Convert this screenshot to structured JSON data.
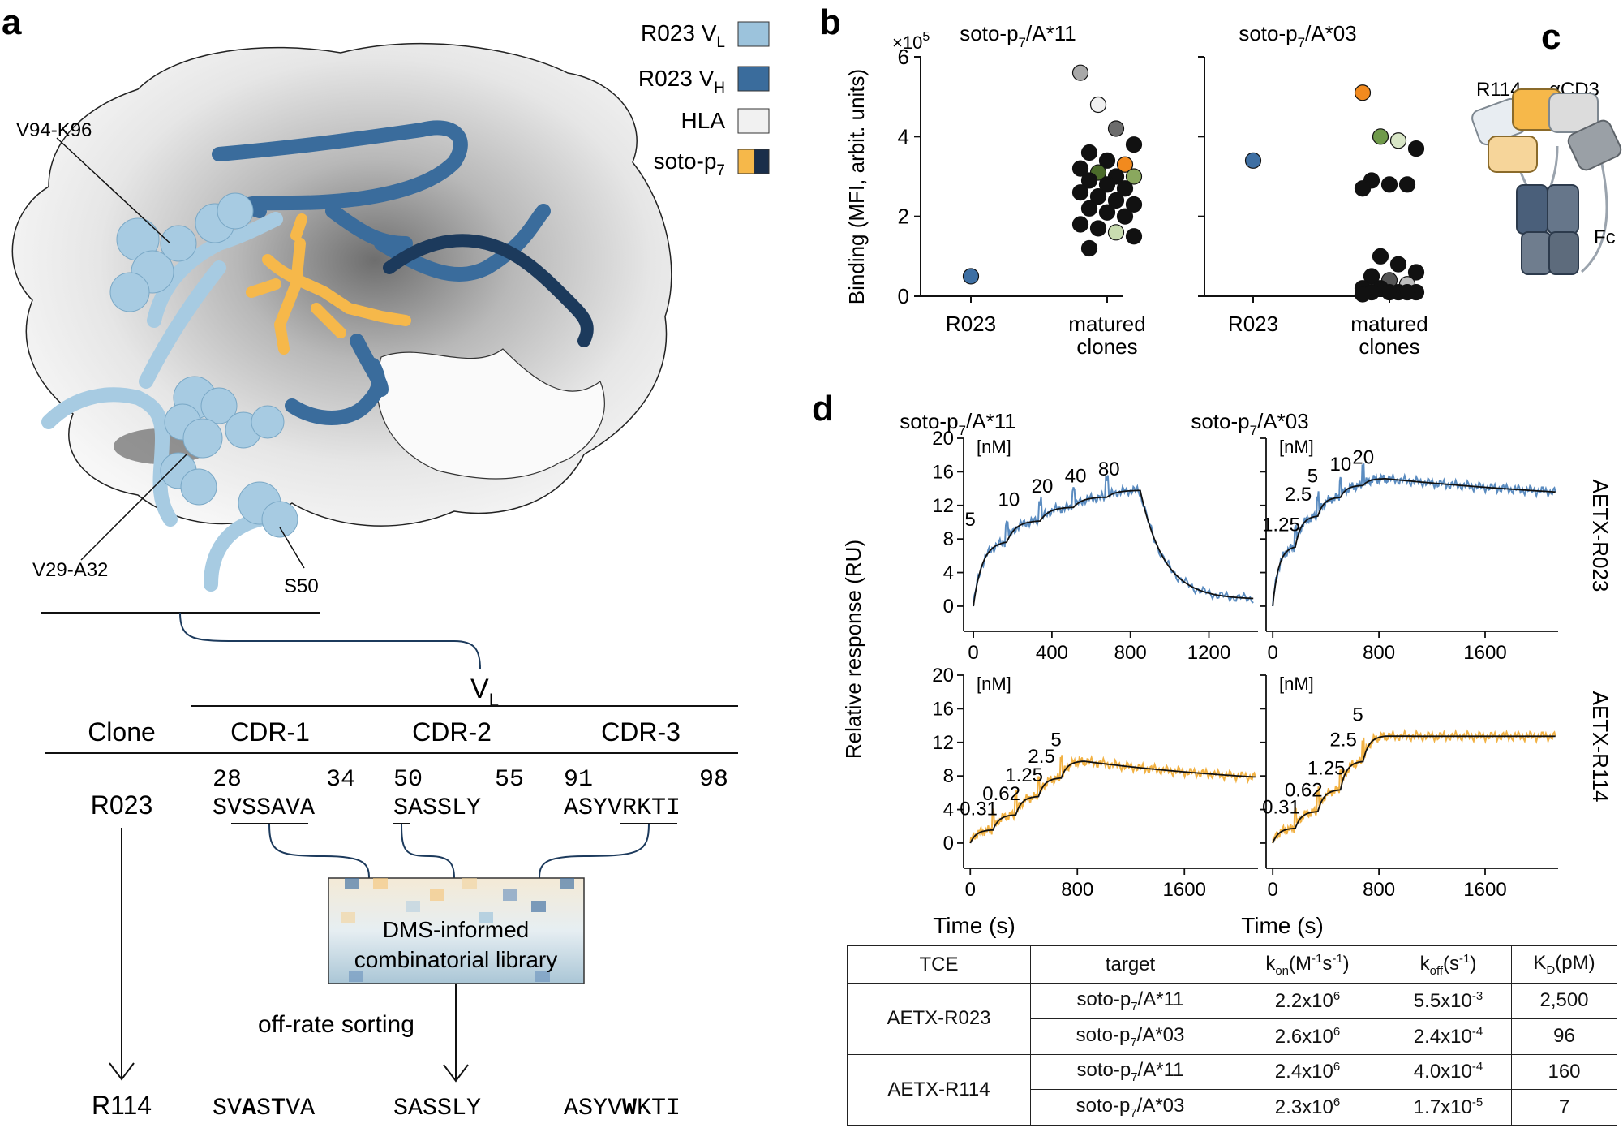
{
  "panel_a": {
    "letter": "a",
    "legend": [
      {
        "label": "R023 V",
        "sub": "L",
        "color": "#9cc3dc"
      },
      {
        "label": "R023 V",
        "sub": "H",
        "color": "#3a6c9c"
      },
      {
        "label": "HLA",
        "sub": "",
        "color": "#f1f1f1"
      },
      {
        "label": "soto-p",
        "sub": "7",
        "color": "#f6b84a",
        "color2": "#1a2e4a"
      }
    ],
    "annotations": [
      "V94-K96",
      "V29-A32",
      "S50"
    ],
    "vl_label": "V",
    "vl_sub": "L",
    "headers": {
      "clone": "Clone",
      "cdr1": "CDR-1",
      "cdr2": "CDR-2",
      "cdr3": "CDR-3"
    },
    "positions": {
      "p28": "28",
      "p34": "34",
      "p50": "50",
      "p55": "55",
      "p91": "91",
      "p98": "98"
    },
    "r023": {
      "clone": "R023",
      "cdr1": "SVSSAVA",
      "cdr2": "SASSLY",
      "cdr3": "ASYVRKTI"
    },
    "r114": {
      "clone": "R114",
      "cdr1": [
        "SV",
        "A",
        "S",
        "T",
        "VA"
      ],
      "cdr2": "SASSLY",
      "cdr3": [
        "ASYV",
        "W",
        "KTI"
      ]
    },
    "library": {
      "line1": "DMS-informed",
      "line2": "combinatorial library"
    },
    "sorting": "off-rate sorting"
  },
  "panel_b": {
    "letter": "b",
    "ylabel": "Binding (MFI, arbit. units)",
    "exponent_base": "×10",
    "exponent_pow": "5",
    "titles": [
      {
        "main": "soto-p",
        "sub": "7",
        "rest": "/A*11"
      },
      {
        "main": "soto-p",
        "sub": "7",
        "rest": "/A*03"
      }
    ],
    "xcats": {
      "r023": "R023",
      "mat1": "matured",
      "mat2": "clones"
    }
  },
  "panel_c": {
    "letter": "c",
    "r114": "R114",
    "acd3": "αCD3",
    "fc": "Fc"
  },
  "panel_d": {
    "letter": "d",
    "ylabel": "Relative response (RU)",
    "xlabel": "Time (s)",
    "unit": "[nM]",
    "titles": [
      {
        "main": "soto-p",
        "sub": "7",
        "rest": "/A*11"
      },
      {
        "main": "soto-p",
        "sub": "7",
        "rest": "/A*03"
      }
    ],
    "row_labels": [
      "AETX-R023",
      "AETX-R114"
    ],
    "conc_sets": [
      [
        "5",
        "10",
        "20",
        "40",
        "80"
      ],
      [
        "1.25",
        "2.5",
        "5",
        "10",
        "20"
      ],
      [
        "0.31",
        "0.62",
        "1.25",
        "2.5",
        "5"
      ],
      [
        "0.31",
        "0.62",
        "1.25",
        "2.5",
        "5"
      ]
    ]
  },
  "chart_data": [
    {
      "type": "scatter",
      "title": "soto-p7/A*11",
      "ylabel": "Binding (MFI, arbit. units)",
      "ylim": [
        0,
        6
      ],
      "yticks": [
        0,
        2,
        4,
        6
      ],
      "categories": [
        "R023",
        "matured clones"
      ],
      "series": [
        {
          "category": "R023",
          "values": [
            0.5
          ],
          "colors": [
            "#3e6fa3"
          ]
        },
        {
          "category": "matured clones",
          "values": [
            5.6,
            4.8,
            4.2,
            3.8,
            3.6,
            3.4,
            3.3,
            3.2,
            3.1,
            3.0,
            3.0,
            2.9,
            2.8,
            2.7,
            2.6,
            2.5,
            2.4,
            2.3,
            2.2,
            2.1,
            2.0,
            1.8,
            1.7,
            1.6,
            1.5,
            1.2
          ],
          "colors": [
            "#a8a8a8",
            "#f0f0f0",
            "#6c6c6c",
            "#111",
            "#111",
            "#111",
            "#f28a1e",
            "#111",
            "#4b6b2a",
            "#111",
            "#8aa85e",
            "#111",
            "#111",
            "#111",
            "#111",
            "#111",
            "#111",
            "#111",
            "#111",
            "#111",
            "#111",
            "#111",
            "#111",
            "#c9dcb0",
            "#111",
            "#111"
          ]
        }
      ]
    },
    {
      "type": "scatter",
      "title": "soto-p7/A*03",
      "ylim": [
        0,
        6
      ],
      "yticks": [
        0,
        2,
        4,
        6
      ],
      "categories": [
        "R023",
        "matured clones"
      ],
      "series": [
        {
          "category": "R023",
          "values": [
            3.4
          ],
          "colors": [
            "#3e6fa3"
          ]
        },
        {
          "category": "matured clones",
          "values": [
            5.1,
            4.0,
            3.9,
            3.7,
            2.9,
            2.8,
            2.8,
            2.7,
            1.0,
            0.8,
            0.6,
            0.5,
            0.4,
            0.3,
            0.2,
            0.2,
            0.1,
            0.1,
            0.1,
            0.1,
            0.1,
            0.05
          ],
          "colors": [
            "#f28a1e",
            "#6f9a4a",
            "#d8e6c6",
            "#111",
            "#111",
            "#111",
            "#111",
            "#111",
            "#111",
            "#111",
            "#111",
            "#111",
            "#555",
            "#bdbdbd",
            "#111",
            "#111",
            "#111",
            "#111",
            "#111",
            "#111",
            "#111",
            "#111"
          ]
        }
      ]
    },
    {
      "type": "line",
      "title": "soto-p7/A*11 AETX-R023",
      "xlabel": "",
      "ylabel": "Relative response (RU)",
      "xlim": [
        -50,
        1450
      ],
      "ylim": [
        -3,
        20
      ],
      "xticks": [
        0,
        400,
        800,
        1200
      ],
      "yticks": [
        0,
        4,
        8,
        12,
        16,
        20
      ],
      "concentrations_nM": [
        5,
        10,
        20,
        40,
        80
      ],
      "injection_starts_s": [
        0,
        170,
        340,
        510,
        680
      ],
      "dissociation_start_s": 850,
      "plateaus_RU": [
        7.8,
        10.2,
        11.8,
        13.0,
        13.8
      ],
      "final_RU": 0.8,
      "series_colors": {
        "data": "#5b8cc0",
        "fit": "#111"
      }
    },
    {
      "type": "line",
      "title": "soto-p7/A*03 AETX-R023",
      "xlim": [
        -50,
        2150
      ],
      "ylim": [
        -3,
        20
      ],
      "xticks": [
        0,
        800,
        1600
      ],
      "yticks": [
        0,
        4,
        8,
        12,
        16,
        20
      ],
      "concentrations_nM": [
        1.25,
        2.5,
        5,
        10,
        20
      ],
      "injection_starts_s": [
        0,
        170,
        340,
        510,
        680
      ],
      "dissociation_start_s": 850,
      "plateaus_RU": [
        7.2,
        10.8,
        13.0,
        14.4,
        15.2
      ],
      "final_RU": 11.2,
      "series_colors": {
        "data": "#5b8cc0",
        "fit": "#111"
      }
    },
    {
      "type": "line",
      "title": "soto-p7/A*11 AETX-R114",
      "xlabel": "Time (s)",
      "xlim": [
        -50,
        2150
      ],
      "ylim": [
        -3,
        20
      ],
      "xticks": [
        0,
        800,
        1600
      ],
      "yticks": [
        0,
        4,
        8,
        12,
        16,
        20
      ],
      "concentrations_nM": [
        0.31,
        0.62,
        1.25,
        2.5,
        5
      ],
      "injection_starts_s": [
        0,
        170,
        340,
        510,
        680
      ],
      "dissociation_start_s": 850,
      "plateaus_RU": [
        1.6,
        3.4,
        5.6,
        7.8,
        9.8
      ],
      "final_RU": 6.2,
      "series_colors": {
        "data": "#f2b244",
        "fit": "#111"
      }
    },
    {
      "type": "line",
      "title": "soto-p7/A*03 AETX-R114",
      "xlabel": "Time (s)",
      "xlim": [
        -50,
        2150
      ],
      "ylim": [
        -3,
        20
      ],
      "xticks": [
        0,
        800,
        1600
      ],
      "yticks": [
        0,
        4,
        8,
        12,
        16,
        20
      ],
      "concentrations_nM": [
        0.31,
        0.62,
        1.25,
        2.5,
        5
      ],
      "injection_starts_s": [
        0,
        170,
        340,
        510,
        680
      ],
      "dissociation_start_s": 850,
      "plateaus_RU": [
        1.8,
        3.8,
        6.4,
        9.8,
        12.8
      ],
      "final_RU": 12.6,
      "series_colors": {
        "data": "#f2b244",
        "fit": "#111"
      }
    },
    {
      "type": "table",
      "columns": [
        {
          "main": "TCE"
        },
        {
          "main": "target"
        },
        {
          "main": "k",
          "sub": "on",
          "rest1": "(M",
          "sup1": "-1",
          "rest2": "s",
          "sup2": "-1",
          "rest3": ")"
        },
        {
          "main": "k",
          "sub": "off",
          "rest1": "(s",
          "sup1": "-1",
          "rest2": ")"
        },
        {
          "main": "K",
          "sub": "D",
          "rest1": "(pM)"
        }
      ],
      "groups": [
        {
          "tce": "AETX-R023",
          "rows": [
            {
              "target": {
                "main": "soto-p",
                "sub": "7",
                "rest": "/A*11"
              },
              "kon": {
                "base": "2.2x10",
                "exp": "6"
              },
              "koff": {
                "base": "5.5x10",
                "exp": "-3"
              },
              "kd": "2,500"
            },
            {
              "target": {
                "main": "soto-p",
                "sub": "7",
                "rest": "/A*03"
              },
              "kon": {
                "base": "2.6x10",
                "exp": "6"
              },
              "koff": {
                "base": "2.4x10",
                "exp": "-4"
              },
              "kd": "96"
            }
          ]
        },
        {
          "tce": "AETX-R114",
          "rows": [
            {
              "target": {
                "main": "soto-p",
                "sub": "7",
                "rest": "/A*11"
              },
              "kon": {
                "base": "2.4x10",
                "exp": "6"
              },
              "koff": {
                "base": "4.0x10",
                "exp": "-4"
              },
              "kd": "160"
            },
            {
              "target": {
                "main": "soto-p",
                "sub": "7",
                "rest": "/A*03"
              },
              "kon": {
                "base": "2.3x10",
                "exp": "6"
              },
              "koff": {
                "base": "1.7x10",
                "exp": "-5"
              },
              "kd": "7"
            }
          ]
        }
      ]
    }
  ]
}
